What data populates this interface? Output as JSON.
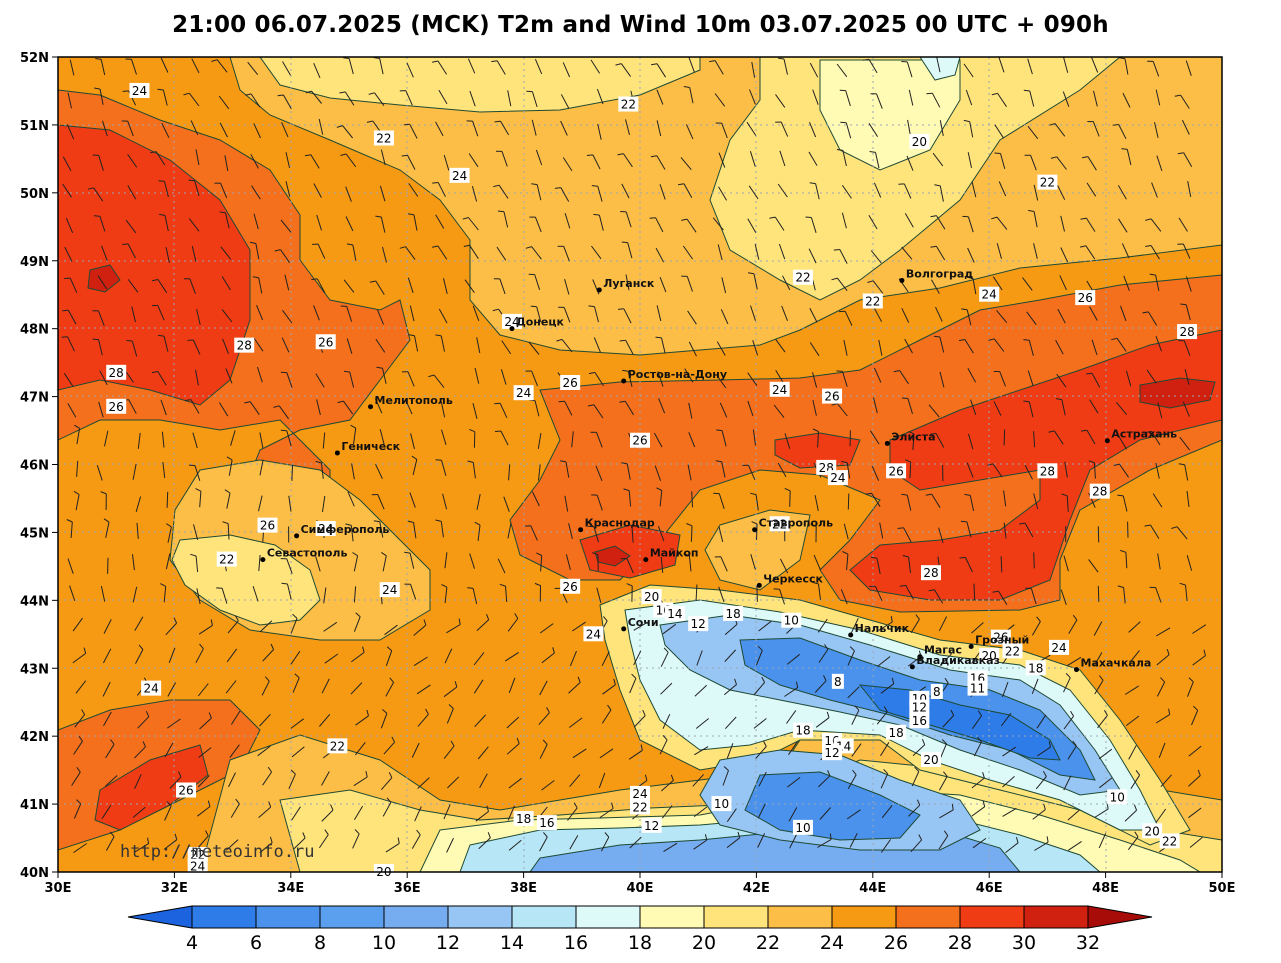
{
  "title": "21:00 06.07.2025 (MCK) T2m and Wind 10m 03.07.2025 00 UTC + 090h",
  "watermark": "http://meteoinfo.ru",
  "axes": {
    "lat_labels": [
      "52N",
      "51N",
      "50N",
      "49N",
      "48N",
      "47N",
      "46N",
      "45N",
      "44N",
      "43N",
      "42N",
      "41N",
      "40N"
    ],
    "lon_labels": [
      "30E",
      "32E",
      "34E",
      "36E",
      "38E",
      "40E",
      "42E",
      "44E",
      "46E",
      "48E",
      "50E"
    ]
  },
  "colors": {
    "t4": "#1c63e0",
    "t6": "#2e7ce8",
    "t8": "#4a92ec",
    "t10": "#76acf0",
    "t12": "#98c6f4",
    "t14": "#b7e7f6",
    "t16": "#ddfaf9",
    "t18": "#fffab4",
    "t20": "#ffe47c",
    "t22": "#fcbe46",
    "t24": "#f69a14",
    "t26": "#f4701c",
    "t28": "#f03c14",
    "t30": "#d02010",
    "t32": "#a80c08",
    "land": "#f9a825",
    "contour": "#1e4a34",
    "grid": "#9aa6b6"
  },
  "colorbar": {
    "labels": [
      "4",
      "6",
      "8",
      "10",
      "12",
      "14",
      "16",
      "18",
      "20",
      "22",
      "24",
      "26",
      "28",
      "30",
      "32"
    ]
  },
  "cities": [
    {
      "name": "Луганск",
      "lon": 39.3,
      "lat": 48.57
    },
    {
      "name": "Донецк",
      "lon": 37.8,
      "lat": 48.0
    },
    {
      "name": "Волгоград",
      "lon": 44.5,
      "lat": 48.71
    },
    {
      "name": "Ростов-на-Дону",
      "lon": 39.72,
      "lat": 47.23
    },
    {
      "name": "Мелитополь",
      "lon": 35.37,
      "lat": 46.85
    },
    {
      "name": "Геническ",
      "lon": 34.8,
      "lat": 46.17
    },
    {
      "name": "Элиста",
      "lon": 44.25,
      "lat": 46.31
    },
    {
      "name": "Астрахань",
      "lon": 48.03,
      "lat": 46.35
    },
    {
      "name": "Краснодар",
      "lon": 38.98,
      "lat": 45.04
    },
    {
      "name": "Ставрополь",
      "lon": 41.97,
      "lat": 45.04
    },
    {
      "name": "Симферополь",
      "lon": 34.1,
      "lat": 44.95
    },
    {
      "name": "Севастополь",
      "lon": 33.52,
      "lat": 44.6
    },
    {
      "name": "Майкоп",
      "lon": 40.1,
      "lat": 44.6
    },
    {
      "name": "Черкесск",
      "lon": 42.05,
      "lat": 44.22
    },
    {
      "name": "Нальчик",
      "lon": 43.62,
      "lat": 43.49
    },
    {
      "name": "Сочи",
      "lon": 39.72,
      "lat": 43.58
    },
    {
      "name": "Магас",
      "lon": 44.81,
      "lat": 43.17
    },
    {
      "name": "Грозный",
      "lon": 45.69,
      "lat": 43.32
    },
    {
      "name": "Владикавказ",
      "lon": 44.68,
      "lat": 43.02
    },
    {
      "name": "Махачкала",
      "lon": 47.5,
      "lat": 42.98
    }
  ],
  "contour_labels": [
    {
      "t": "24",
      "lon": 31.4,
      "lat": 51.5
    },
    {
      "t": "22",
      "lon": 39.8,
      "lat": 51.3
    },
    {
      "t": "22",
      "lon": 35.6,
      "lat": 50.8
    },
    {
      "t": "24",
      "lon": 36.9,
      "lat": 50.25
    },
    {
      "t": "20",
      "lon": 44.8,
      "lat": 50.75
    },
    {
      "t": "22",
      "lon": 47.0,
      "lat": 50.15
    },
    {
      "t": "22",
      "lon": 42.8,
      "lat": 48.75
    },
    {
      "t": "22",
      "lon": 44.0,
      "lat": 48.4
    },
    {
      "t": "24",
      "lon": 46.0,
      "lat": 48.5
    },
    {
      "t": "26",
      "lon": 47.65,
      "lat": 48.45
    },
    {
      "t": "28",
      "lon": 49.4,
      "lat": 47.95
    },
    {
      "t": "24",
      "lon": 37.8,
      "lat": 48.1
    },
    {
      "t": "26",
      "lon": 34.6,
      "lat": 47.8
    },
    {
      "t": "28",
      "lon": 33.2,
      "lat": 47.75
    },
    {
      "t": "28",
      "lon": 31.0,
      "lat": 47.35
    },
    {
      "t": "26",
      "lon": 31.0,
      "lat": 46.85
    },
    {
      "t": "24",
      "lon": 38.0,
      "lat": 47.05
    },
    {
      "t": "26",
      "lon": 38.8,
      "lat": 47.2
    },
    {
      "t": "24",
      "lon": 42.4,
      "lat": 47.1
    },
    {
      "t": "26",
      "lon": 43.3,
      "lat": 47.0
    },
    {
      "t": "26",
      "lon": 40.0,
      "lat": 46.35
    },
    {
      "t": "28",
      "lon": 43.2,
      "lat": 45.95
    },
    {
      "t": "24",
      "lon": 43.4,
      "lat": 45.8
    },
    {
      "t": "26",
      "lon": 44.4,
      "lat": 45.9
    },
    {
      "t": "28",
      "lon": 47.0,
      "lat": 45.9
    },
    {
      "t": "28",
      "lon": 47.9,
      "lat": 45.6
    },
    {
      "t": "26",
      "lon": 33.6,
      "lat": 45.1
    },
    {
      "t": "24",
      "lon": 34.6,
      "lat": 45.05
    },
    {
      "t": "22",
      "lon": 32.9,
      "lat": 44.6
    },
    {
      "t": "22",
      "lon": 42.4,
      "lat": 45.12
    },
    {
      "t": "28",
      "lon": 45.0,
      "lat": 44.4
    },
    {
      "t": "24",
      "lon": 35.7,
      "lat": 44.15
    },
    {
      "t": "26",
      "lon": 38.8,
      "lat": 44.2
    },
    {
      "t": "20",
      "lon": 40.2,
      "lat": 44.05
    },
    {
      "t": "16",
      "lon": 40.4,
      "lat": 43.85
    },
    {
      "t": "14",
      "lon": 40.6,
      "lat": 43.8
    },
    {
      "t": "12",
      "lon": 41.0,
      "lat": 43.65
    },
    {
      "t": "18",
      "lon": 41.6,
      "lat": 43.8
    },
    {
      "t": "10",
      "lon": 42.6,
      "lat": 43.7
    },
    {
      "t": "24",
      "lon": 39.2,
      "lat": 43.5
    },
    {
      "t": "26",
      "lon": 46.2,
      "lat": 43.45
    },
    {
      "t": "20",
      "lon": 46.0,
      "lat": 43.18
    },
    {
      "t": "22",
      "lon": 46.4,
      "lat": 43.25
    },
    {
      "t": "24",
      "lon": 47.2,
      "lat": 43.3
    },
    {
      "t": "18",
      "lon": 46.8,
      "lat": 43.0
    },
    {
      "t": "16",
      "lon": 45.8,
      "lat": 42.85
    },
    {
      "t": "11",
      "lon": 45.8,
      "lat": 42.7
    },
    {
      "t": "8",
      "lon": 43.4,
      "lat": 42.8
    },
    {
      "t": "8",
      "lon": 45.1,
      "lat": 42.65
    },
    {
      "t": "10",
      "lon": 44.8,
      "lat": 42.55
    },
    {
      "t": "12",
      "lon": 44.8,
      "lat": 42.42
    },
    {
      "t": "16",
      "lon": 44.8,
      "lat": 42.22
    },
    {
      "t": "18",
      "lon": 42.8,
      "lat": 42.08
    },
    {
      "t": "16",
      "lon": 43.3,
      "lat": 41.93
    },
    {
      "t": "14",
      "lon": 43.5,
      "lat": 41.85
    },
    {
      "t": "12",
      "lon": 43.3,
      "lat": 41.75
    },
    {
      "t": "18",
      "lon": 44.4,
      "lat": 42.05
    },
    {
      "t": "20",
      "lon": 45.0,
      "lat": 41.65
    },
    {
      "t": "24",
      "lon": 31.6,
      "lat": 42.7
    },
    {
      "t": "22",
      "lon": 34.8,
      "lat": 41.85
    },
    {
      "t": "26",
      "lon": 32.2,
      "lat": 41.2
    },
    {
      "t": "24",
      "lon": 40.0,
      "lat": 41.15
    },
    {
      "t": "22",
      "lon": 40.0,
      "lat": 40.95
    },
    {
      "t": "10",
      "lon": 41.4,
      "lat": 41.0
    },
    {
      "t": "18",
      "lon": 38.0,
      "lat": 40.78
    },
    {
      "t": "16",
      "lon": 38.4,
      "lat": 40.72
    },
    {
      "t": "12",
      "lon": 40.2,
      "lat": 40.68
    },
    {
      "t": "10",
      "lon": 42.8,
      "lat": 40.65
    },
    {
      "t": "10",
      "lon": 48.2,
      "lat": 41.1
    },
    {
      "t": "20",
      "lon": 48.8,
      "lat": 40.6
    },
    {
      "t": "22",
      "lon": 49.1,
      "lat": 40.45
    },
    {
      "t": "22",
      "lon": 32.4,
      "lat": 40.25
    },
    {
      "t": "24",
      "lon": 32.4,
      "lat": 40.08
    },
    {
      "t": "20",
      "lon": 35.6,
      "lat": 40.0
    }
  ]
}
